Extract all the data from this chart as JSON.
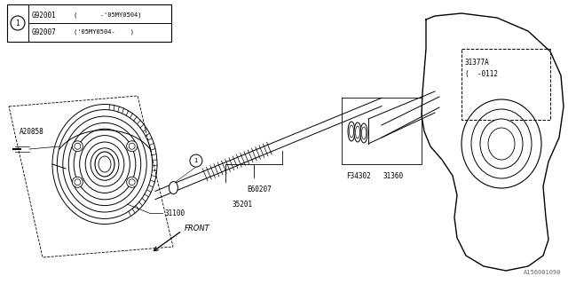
{
  "bg_color": "#ffffff",
  "line_color": "#000000",
  "watermark": "A156001090",
  "legend_rows": [
    [
      "G92001",
      "(      -’05MY0504)"
    ],
    [
      "G92007",
      "(’05MY0504-    )"
    ]
  ]
}
